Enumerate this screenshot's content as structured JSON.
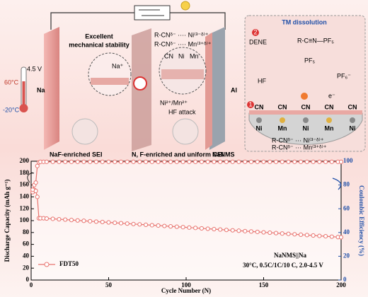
{
  "diagram": {
    "mechanical_1": "Excellent",
    "mechanical_2": "mechanical stability",
    "coord_ni": "R-CNᵟ⁻ ···· Ni⁽³⁻ᵟ⁾⁺",
    "coord_mn": "R-CNᵟ⁻ ···· Mn⁽³⁺ᵟ⁾⁺",
    "voltage": "4.5 V",
    "temp_high": "60°C",
    "temp_low": "-20°C",
    "anode": "Na",
    "cathode_collector": "Al",
    "na_ion": "Na⁺",
    "legend_cn": "CN",
    "legend_ni": "Ni",
    "legend_mn": "Mn",
    "tm_ions": "Ni²⁺/Mn²⁺",
    "hf_attack": "HF attack",
    "sei": "NaF-enriched SEI",
    "cei": "N, F-enriched and uniform CEI",
    "cathode": "NaNMS",
    "panel_title": "TM dissolution",
    "step_1": "1",
    "step_2": "2",
    "dene": "DENE",
    "complex": "R-C≡N—PF₅",
    "pf5": "PF₅",
    "hf": "HF",
    "pf6": "PF₆⁻",
    "electron": "e⁻",
    "surface_ligands": [
      "CN",
      "CN",
      "CN",
      "CN",
      "CN"
    ],
    "surface_metals": [
      "Ni",
      "Mn",
      "Ni",
      "Mn",
      "Ni"
    ],
    "surface_ni": "R-CNᵟ⁻ ··· Ni⁽³⁻ᵟ⁾⁺",
    "surface_mn": "R-CNᵟ⁻ ··· Mn⁽³⁺ᵟ⁾⁺"
  },
  "chart_data": {
    "type": "line",
    "xlabel": "Cycle Number (N)",
    "ylabel": "Discharge Capacity (mAh g⁻¹)",
    "y2label": "Coulombic Efficiency (%)",
    "annotations": [
      "NaNMS||Na",
      "30°C, 0.5C/1C/10 C, 2.0-4.5 V"
    ],
    "x": [
      1,
      2,
      3,
      4,
      5,
      6,
      8,
      10,
      14,
      18,
      22,
      26,
      30,
      34,
      38,
      42,
      46,
      50,
      54,
      58,
      62,
      66,
      70,
      74,
      78,
      82,
      86,
      90,
      94,
      98,
      102,
      106,
      110,
      114,
      118,
      122,
      126,
      130,
      134,
      138,
      142,
      146,
      150,
      154,
      158,
      162,
      166,
      170,
      174,
      178,
      182,
      186,
      190,
      194,
      198,
      200
    ],
    "series": [
      {
        "name": "FDT50",
        "color": "#e8746f",
        "values": [
          148,
          152,
          150,
          140,
          104,
          104,
          104,
          103.5,
          103,
          102.3,
          101.7,
          101,
          100.3,
          99.7,
          99,
          98.3,
          97.7,
          97,
          96.3,
          95.7,
          95,
          94.3,
          93.7,
          93,
          92.3,
          91.7,
          91,
          90.3,
          89.7,
          89,
          88.3,
          87.7,
          87,
          86.3,
          85.7,
          85,
          84.3,
          83.7,
          83,
          82.3,
          81.7,
          81,
          80.3,
          79.7,
          79,
          78.3,
          77.7,
          77,
          76.3,
          75.7,
          75,
          74.3,
          73.7,
          73,
          72.3,
          72
        ]
      },
      {
        "color": "#e8746f",
        "axis": "y2",
        "values": [
          76,
          80,
          82,
          96,
          99,
          99.5,
          99.5,
          99.5,
          99.5,
          99.5,
          99.5,
          99.5,
          99.5,
          99.5,
          99.5,
          99.5,
          99.5,
          99.5,
          99.5,
          99.5,
          99.5,
          99.5,
          99.5,
          99.5,
          99.5,
          99.5,
          99.5,
          99.5,
          99.5,
          99.5,
          99.5,
          99.5,
          99.5,
          99.5,
          99.5,
          99.5,
          99.5,
          99.5,
          99.5,
          99.5,
          99.5,
          99.5,
          99.5,
          99.5,
          99.5,
          99.5,
          99.5,
          99.5,
          99.5,
          99.5,
          99.5,
          99.5,
          99.5,
          99.5,
          99.5,
          99.5
        ]
      }
    ],
    "xlim": [
      0,
      200
    ],
    "xticks": [
      0,
      50,
      100,
      150,
      200
    ],
    "ylim": [
      0,
      200
    ],
    "yticks": [
      0,
      20,
      40,
      60,
      80,
      100,
      120,
      140,
      160,
      180,
      200
    ],
    "y2lim": [
      0,
      100
    ],
    "y2ticks": [
      0,
      20,
      40,
      60,
      80,
      100
    ],
    "y2color": "#1f4fa8",
    "legend": "lower left",
    "grid": false
  }
}
